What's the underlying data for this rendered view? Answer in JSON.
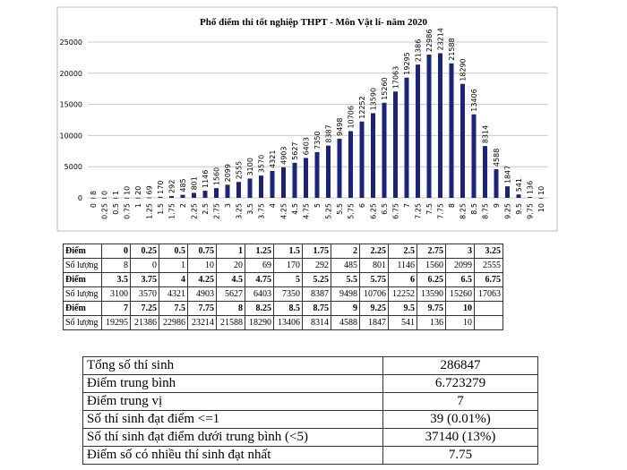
{
  "chart_data": {
    "type": "bar",
    "title": "Phổ điểm thi tốt nghiệp THPT - Môn Vật lí- năm 2020",
    "xlabel": "",
    "ylabel": "",
    "ylim": [
      0,
      25000
    ],
    "yticks": [
      "0",
      "5000",
      "10000",
      "15000",
      "20000",
      "25000"
    ],
    "grid": true,
    "bar_color": "#1a237e",
    "categories": [
      "0",
      "0.25",
      "0.5",
      "0.75",
      "1",
      "1.25",
      "1.5",
      "1.75",
      "2",
      "2.25",
      "2.5",
      "2.75",
      "3",
      "3.25",
      "3.5",
      "3.75",
      "4",
      "4.25",
      "4.5",
      "4.75",
      "5",
      "5.25",
      "5.5",
      "5.75",
      "6",
      "6.25",
      "6.5",
      "6.75",
      "7",
      "7.25",
      "7.5",
      "7.75",
      "8",
      "8.25",
      "8.5",
      "8.75",
      "9",
      "9.25",
      "9.5",
      "9.75",
      "10"
    ],
    "values": [
      8,
      0,
      1,
      10,
      20,
      69,
      170,
      292,
      485,
      801,
      1146,
      1560,
      2099,
      2555,
      3100,
      3570,
      4321,
      4903,
      5627,
      6403,
      7350,
      8387,
      9498,
      10706,
      12252,
      13590,
      15260,
      17063,
      19295,
      21386,
      22986,
      23214,
      21588,
      18290,
      13406,
      8314,
      4588,
      1847,
      541,
      136,
      10
    ]
  },
  "score_table": {
    "score_label": "Điểm",
    "count_label": "Số lượng",
    "rows": [
      {
        "scores": [
          "0",
          "0.25",
          "0.5",
          "0.75",
          "1",
          "1.25",
          "1.5",
          "1.75",
          "2",
          "2.25",
          "2.5",
          "2.75",
          "3",
          "3.25"
        ],
        "counts": [
          "8",
          "0",
          "1",
          "10",
          "20",
          "69",
          "170",
          "292",
          "485",
          "801",
          "1146",
          "1560",
          "2099",
          "2555"
        ]
      },
      {
        "scores": [
          "3.5",
          "3.75",
          "4",
          "4.25",
          "4.5",
          "4.75",
          "5",
          "5.25",
          "5.5",
          "5.75",
          "6",
          "6.25",
          "6.5",
          "6.75"
        ],
        "counts": [
          "3100",
          "3570",
          "4321",
          "4903",
          "5627",
          "6403",
          "7350",
          "8387",
          "9498",
          "10706",
          "12252",
          "13590",
          "15260",
          "17063"
        ]
      },
      {
        "scores": [
          "7",
          "7.25",
          "7.5",
          "7.75",
          "8",
          "8.25",
          "8.5",
          "8.75",
          "9",
          "9.25",
          "9.5",
          "9.75",
          "10",
          ""
        ],
        "counts": [
          "19295",
          "21386",
          "22986",
          "23214",
          "21588",
          "18290",
          "13406",
          "8314",
          "4588",
          "1847",
          "541",
          "136",
          "10",
          ""
        ]
      }
    ]
  },
  "summary_table": [
    {
      "label": "Tổng số thí sinh",
      "value": "286847"
    },
    {
      "label": "Điểm trung bình",
      "value": "6.723279"
    },
    {
      "label": "Điểm trung vị",
      "value": "7"
    },
    {
      "label": "Số thí sinh đạt điểm <=1",
      "value": "39 (0.01%)"
    },
    {
      "label": "Số thí sinh đạt điểm dưới trung bình (<5)",
      "value": "37140 (13%)"
    },
    {
      "label": "Điểm số có nhiều thí sinh đạt nhất",
      "value": "7.75"
    }
  ]
}
